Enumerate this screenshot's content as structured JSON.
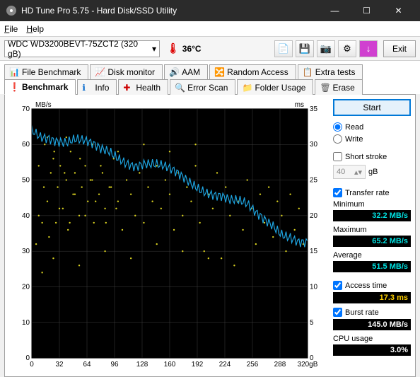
{
  "window": {
    "title": "HD Tune Pro 5.75 - Hard Disk/SSD Utility"
  },
  "menu": {
    "file": "File",
    "help": "Help"
  },
  "toolbar": {
    "drive": "WDC WD3200BEVT-75ZCT2 (320 gB)",
    "temp": "36°C",
    "exit": "Exit"
  },
  "tabs_row1": [
    {
      "label": "File Benchmark"
    },
    {
      "label": "Disk monitor"
    },
    {
      "label": "AAM"
    },
    {
      "label": "Random Access"
    },
    {
      "label": "Extra tests"
    }
  ],
  "tabs_row2": [
    {
      "label": "Benchmark",
      "active": true
    },
    {
      "label": "Info"
    },
    {
      "label": "Health"
    },
    {
      "label": "Error Scan"
    },
    {
      "label": "Folder Usage"
    },
    {
      "label": "Erase"
    }
  ],
  "side": {
    "start": "Start",
    "read": "Read",
    "write": "Write",
    "shortstroke": "Short stroke",
    "shortval": "40",
    "gb": "gB",
    "transfer": "Transfer rate",
    "min_l": "Minimum",
    "min_v": "32.2 MB/s",
    "max_l": "Maximum",
    "max_v": "65.2 MB/s",
    "avg_l": "Average",
    "avg_v": "51.5 MB/s",
    "access": "Access time",
    "access_v": "17.3 ms",
    "burst": "Burst rate",
    "burst_v": "145.0 MB/s",
    "cpu_l": "CPU usage",
    "cpu_v": "3.0%"
  },
  "chart": {
    "y_left_label": "MB/s",
    "y_right_label": "ms",
    "y_left_ticks": [
      0,
      10,
      20,
      30,
      40,
      50,
      60,
      70
    ],
    "y_right_ticks": [
      0,
      5,
      10,
      15,
      20,
      25,
      30,
      35
    ],
    "x_ticks": [
      0,
      32,
      64,
      96,
      128,
      160,
      192,
      224,
      256,
      288,
      "320gB"
    ],
    "line_color": "#1ea4e0",
    "scatter_color": "#d8d020",
    "bg_color": "#000000",
    "grid_color": "#404040",
    "transfer_line": [
      [
        0,
        64
      ],
      [
        10,
        63
      ],
      [
        20,
        63
      ],
      [
        30,
        62
      ],
      [
        40,
        61
      ],
      [
        50,
        61
      ],
      [
        60,
        60
      ],
      [
        70,
        59
      ],
      [
        80,
        58
      ],
      [
        90,
        58
      ],
      [
        100,
        57
      ],
      [
        110,
        56
      ],
      [
        120,
        55
      ],
      [
        130,
        55
      ],
      [
        140,
        54
      ],
      [
        150,
        53
      ],
      [
        160,
        52
      ],
      [
        170,
        51
      ],
      [
        180,
        50
      ],
      [
        190,
        49
      ],
      [
        200,
        48
      ],
      [
        210,
        47
      ],
      [
        220,
        46
      ],
      [
        230,
        44
      ],
      [
        240,
        43
      ],
      [
        250,
        42
      ],
      [
        260,
        40
      ],
      [
        270,
        39
      ],
      [
        280,
        38
      ],
      [
        290,
        36
      ],
      [
        300,
        35
      ],
      [
        310,
        33
      ],
      [
        320,
        32
      ]
    ],
    "access_points": [
      [
        5,
        16
      ],
      [
        8,
        27
      ],
      [
        12,
        19
      ],
      [
        15,
        30
      ],
      [
        18,
        22
      ],
      [
        22,
        26
      ],
      [
        25,
        28
      ],
      [
        28,
        19
      ],
      [
        30,
        24
      ],
      [
        33,
        27
      ],
      [
        36,
        21
      ],
      [
        40,
        25
      ],
      [
        42,
        18
      ],
      [
        45,
        29
      ],
      [
        48,
        23
      ],
      [
        50,
        26
      ],
      [
        55,
        20
      ],
      [
        58,
        24
      ],
      [
        62,
        27
      ],
      [
        65,
        22
      ],
      [
        70,
        25
      ],
      [
        72,
        19
      ],
      [
        78,
        23
      ],
      [
        82,
        26
      ],
      [
        85,
        21
      ],
      [
        90,
        24
      ],
      [
        95,
        28
      ],
      [
        100,
        22
      ],
      [
        105,
        18
      ],
      [
        110,
        25
      ],
      [
        115,
        23
      ],
      [
        120,
        20
      ],
      [
        125,
        26
      ],
      [
        130,
        19
      ],
      [
        135,
        24
      ],
      [
        140,
        22
      ],
      [
        145,
        27
      ],
      [
        150,
        21
      ],
      [
        155,
        25
      ],
      [
        160,
        23
      ],
      [
        165,
        18
      ],
      [
        170,
        26
      ],
      [
        175,
        20
      ],
      [
        180,
        24
      ],
      [
        185,
        22
      ],
      [
        190,
        27
      ],
      [
        195,
        19
      ],
      [
        200,
        15
      ],
      [
        205,
        23
      ],
      [
        210,
        21
      ],
      [
        215,
        26
      ],
      [
        220,
        14
      ],
      [
        225,
        24
      ],
      [
        230,
        20
      ],
      [
        235,
        13
      ],
      [
        240,
        22
      ],
      [
        245,
        18
      ],
      [
        250,
        25
      ],
      [
        255,
        21
      ],
      [
        260,
        16
      ],
      [
        265,
        23
      ],
      [
        270,
        19
      ],
      [
        275,
        24
      ],
      [
        280,
        17
      ],
      [
        285,
        22
      ],
      [
        290,
        20
      ],
      [
        295,
        15
      ],
      [
        300,
        23
      ],
      [
        305,
        18
      ],
      [
        310,
        21
      ],
      [
        315,
        16
      ],
      [
        12,
        12
      ],
      [
        18,
        31
      ],
      [
        25,
        14
      ],
      [
        40,
        31
      ],
      [
        55,
        13
      ],
      [
        70,
        30
      ],
      [
        85,
        15
      ],
      [
        100,
        29
      ],
      [
        115,
        14
      ],
      [
        130,
        30
      ],
      [
        145,
        16
      ],
      [
        160,
        29
      ],
      [
        175,
        15
      ],
      [
        190,
        30
      ],
      [
        205,
        14
      ],
      [
        8,
        20
      ],
      [
        14,
        24
      ],
      [
        20,
        17
      ],
      [
        26,
        29
      ],
      [
        32,
        21
      ],
      [
        38,
        26
      ],
      [
        44,
        19
      ],
      [
        50,
        23
      ],
      [
        56,
        28
      ],
      [
        62,
        20
      ],
      [
        68,
        25
      ],
      [
        74,
        22
      ],
      [
        80,
        27
      ],
      [
        86,
        19
      ],
      [
        92,
        24
      ],
      [
        98,
        21
      ]
    ]
  }
}
